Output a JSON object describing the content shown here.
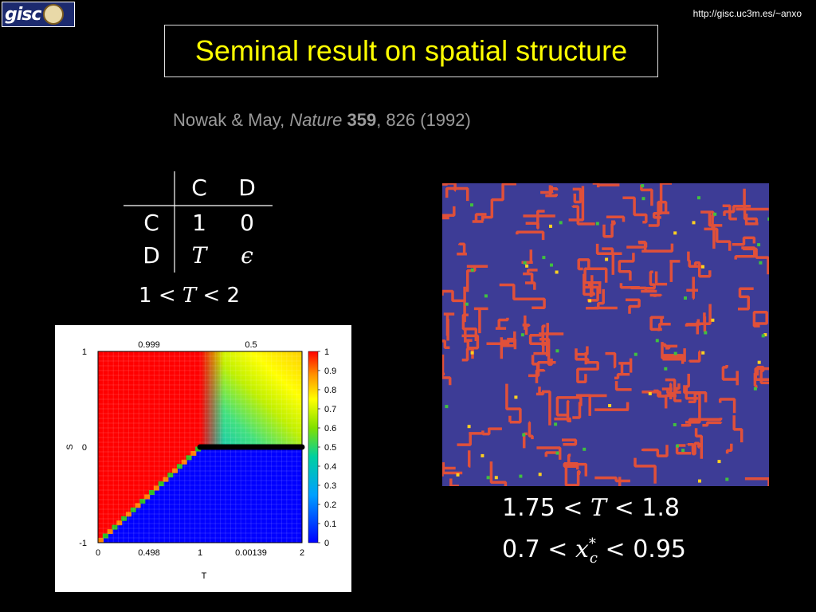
{
  "header": {
    "logo_text": "gisc",
    "url": "http://gisc.uc3m.es/~anxo"
  },
  "title": "Seminal result on spatial structure",
  "citation": {
    "authors": "Nowak & May, ",
    "journal": "Nature",
    "volume": "359",
    "rest": ", 826 (1992)"
  },
  "payoff_table": {
    "col_headers": [
      "C",
      "D"
    ],
    "rows": [
      {
        "label": "C",
        "values": [
          "1",
          "0"
        ]
      },
      {
        "label": "D",
        "values": [
          "T",
          "ϵ"
        ]
      }
    ]
  },
  "condition": {
    "left": "1",
    "op1": "<",
    "var": "T",
    "op2": "<",
    "right": "2"
  },
  "results": [
    {
      "left": "1.75",
      "op1": "<",
      "var": "T",
      "op2": "<",
      "right": "1.8"
    },
    {
      "left": "0.7",
      "op1": "<",
      "var": "x",
      "sup": "*",
      "sub": "c",
      "op2": "<",
      "right": "0.95"
    }
  ],
  "chart_data": {
    "type": "heatmap",
    "title": "",
    "xlabel": "T",
    "ylabel": "S",
    "xlim": [
      0,
      2
    ],
    "ylim": [
      -1,
      1
    ],
    "x_ticks": [
      "0",
      "1",
      "2"
    ],
    "y_ticks": [
      "-1",
      "0",
      "1"
    ],
    "top_annotations": [
      "0.999",
      "0.5"
    ],
    "bottom_annotations": [
      "0.498",
      "0.00139"
    ],
    "colorbar_ticks": [
      "0",
      "0.1",
      "0.2",
      "0.3",
      "0.4",
      "0.5",
      "0.6",
      "0.7",
      "0.8",
      "0.9",
      "1"
    ],
    "colors": {
      "red": "#ff0000",
      "blue": "#0000ff"
    },
    "highlight_segment": {
      "x": [
        1,
        2
      ],
      "y": 0
    }
  }
}
